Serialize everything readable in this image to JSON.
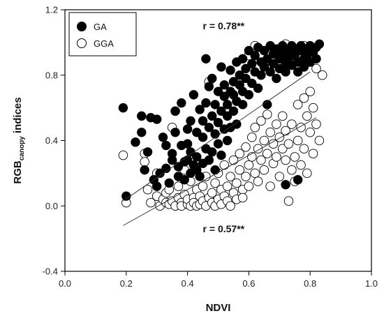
{
  "chart_data": {
    "type": "scatter",
    "xlabel": "NDVI",
    "ylabel": {
      "main": "RGB",
      "sub": "canopy",
      "tail": " indices"
    },
    "xlim": [
      0.0,
      1.0
    ],
    "ylim": [
      -0.4,
      1.2
    ],
    "xticks": [
      0.0,
      0.2,
      0.4,
      0.6,
      0.8,
      1.0
    ],
    "yticks": [
      -0.4,
      0.0,
      0.4,
      0.8,
      1.2
    ],
    "xtick_labels": [
      "0.0",
      "0.2",
      "0.4",
      "0.6",
      "0.8",
      "1.0"
    ],
    "ytick_labels": [
      "-0.4",
      "0.0",
      "0.4",
      "0.8",
      "1.2"
    ],
    "grid": false,
    "legend_position": "top-left",
    "annotations": [
      {
        "text": "r = 0.78**",
        "x": 0.45,
        "y": 1.08
      },
      {
        "text": "r = 0.57**",
        "x": 0.45,
        "y": -0.16
      }
    ],
    "series": [
      {
        "name": "GA",
        "marker": "filled-circle",
        "color": "#000000",
        "fit_line": {
          "x": [
            0.19,
            0.8
          ],
          "y": [
            0.03,
            0.82
          ]
        },
        "points": [
          [
            0.19,
            0.6
          ],
          [
            0.2,
            0.06
          ],
          [
            0.23,
            0.39
          ],
          [
            0.25,
            0.55
          ],
          [
            0.25,
            0.45
          ],
          [
            0.26,
            0.22
          ],
          [
            0.27,
            0.33
          ],
          [
            0.28,
            0.54
          ],
          [
            0.29,
            0.16
          ],
          [
            0.3,
            0.12
          ],
          [
            0.3,
            0.53
          ],
          [
            0.31,
            0.2
          ],
          [
            0.32,
            0.42
          ],
          [
            0.33,
            0.37
          ],
          [
            0.33,
            0.23
          ],
          [
            0.34,
            0.14
          ],
          [
            0.35,
            0.32
          ],
          [
            0.35,
            0.28
          ],
          [
            0.36,
            0.45
          ],
          [
            0.36,
            0.58
          ],
          [
            0.37,
            0.18
          ],
          [
            0.37,
            0.24
          ],
          [
            0.38,
            0.37
          ],
          [
            0.38,
            0.63
          ],
          [
            0.39,
            0.16
          ],
          [
            0.39,
            0.27
          ],
          [
            0.4,
            0.38
          ],
          [
            0.4,
            0.47
          ],
          [
            0.4,
            0.28
          ],
          [
            0.41,
            0.2
          ],
          [
            0.41,
            0.33
          ],
          [
            0.41,
            0.52
          ],
          [
            0.42,
            0.25
          ],
          [
            0.42,
            0.68
          ],
          [
            0.43,
            0.45
          ],
          [
            0.43,
            0.3
          ],
          [
            0.43,
            0.22
          ],
          [
            0.44,
            0.59
          ],
          [
            0.44,
            0.18
          ],
          [
            0.45,
            0.42
          ],
          [
            0.45,
            0.26
          ],
          [
            0.45,
            0.52
          ],
          [
            0.46,
            0.35
          ],
          [
            0.46,
            0.9
          ],
          [
            0.46,
            0.63
          ],
          [
            0.47,
            0.28
          ],
          [
            0.47,
            0.48
          ],
          [
            0.47,
            0.73
          ],
          [
            0.48,
            0.78
          ],
          [
            0.48,
            0.55
          ],
          [
            0.48,
            0.33
          ],
          [
            0.49,
            0.44
          ],
          [
            0.49,
            0.62
          ],
          [
            0.49,
            0.22
          ],
          [
            0.5,
            0.7
          ],
          [
            0.5,
            0.51
          ],
          [
            0.5,
            0.38
          ],
          [
            0.51,
            0.85
          ],
          [
            0.51,
            0.58
          ],
          [
            0.51,
            0.31
          ],
          [
            0.52,
            0.67
          ],
          [
            0.52,
            0.47
          ],
          [
            0.52,
            0.74
          ],
          [
            0.53,
            0.55
          ],
          [
            0.53,
            0.4
          ],
          [
            0.53,
            0.62
          ],
          [
            0.54,
            0.83
          ],
          [
            0.54,
            0.7
          ],
          [
            0.54,
            0.48
          ],
          [
            0.55,
            0.76
          ],
          [
            0.55,
            0.58
          ],
          [
            0.55,
            0.68
          ],
          [
            0.56,
            0.88
          ],
          [
            0.56,
            0.64
          ],
          [
            0.56,
            0.5
          ],
          [
            0.57,
            0.74
          ],
          [
            0.57,
            0.8
          ],
          [
            0.58,
            0.62
          ],
          [
            0.58,
            0.9
          ],
          [
            0.58,
            0.7
          ],
          [
            0.59,
            0.78
          ],
          [
            0.59,
            0.84
          ],
          [
            0.6,
            0.68
          ],
          [
            0.6,
            0.95
          ],
          [
            0.61,
            0.87
          ],
          [
            0.61,
            0.75
          ],
          [
            0.62,
            0.92
          ],
          [
            0.62,
            0.82
          ],
          [
            0.63,
            0.97
          ],
          [
            0.63,
            0.72
          ],
          [
            0.64,
            0.88
          ],
          [
            0.64,
            0.8
          ],
          [
            0.65,
            0.95
          ],
          [
            0.65,
            0.85
          ],
          [
            0.66,
            0.62
          ],
          [
            0.66,
            0.9
          ],
          [
            0.67,
            0.98
          ],
          [
            0.67,
            0.82
          ],
          [
            0.68,
            0.93
          ],
          [
            0.68,
            0.87
          ],
          [
            0.69,
            0.78
          ],
          [
            0.69,
            0.96
          ],
          [
            0.7,
            0.9
          ],
          [
            0.7,
            0.84
          ],
          [
            0.71,
            0.98
          ],
          [
            0.71,
            0.93
          ],
          [
            0.72,
            0.87
          ],
          [
            0.72,
            0.82
          ],
          [
            0.73,
            0.95
          ],
          [
            0.73,
            0.9
          ],
          [
            0.74,
            0.98
          ],
          [
            0.74,
            0.86
          ],
          [
            0.75,
            0.92
          ],
          [
            0.75,
            0.96
          ],
          [
            0.76,
            0.88
          ],
          [
            0.76,
            0.82
          ],
          [
            0.77,
            0.95
          ],
          [
            0.77,
            0.98
          ],
          [
            0.78,
            0.9
          ],
          [
            0.78,
            0.85
          ],
          [
            0.79,
            0.96
          ],
          [
            0.79,
            0.92
          ],
          [
            0.8,
            0.98
          ],
          [
            0.8,
            0.88
          ],
          [
            0.81,
            0.94
          ],
          [
            0.82,
            0.97
          ],
          [
            0.82,
            0.9
          ],
          [
            0.83,
            0.99
          ],
          [
            0.72,
            0.13
          ],
          [
            0.76,
            0.16
          ]
        ]
      },
      {
        "name": "GGA",
        "marker": "open-circle",
        "color": "#000000",
        "fit_line": {
          "x": [
            0.19,
            0.82
          ],
          "y": [
            -0.12,
            0.54
          ]
        },
        "points": [
          [
            0.19,
            0.31
          ],
          [
            0.2,
            0.02
          ],
          [
            0.26,
            0.32
          ],
          [
            0.26,
            0.27
          ],
          [
            0.27,
            0.1
          ],
          [
            0.28,
            0.02
          ],
          [
            0.3,
            0.06
          ],
          [
            0.3,
            0.2
          ],
          [
            0.31,
            0.0
          ],
          [
            0.32,
            0.04
          ],
          [
            0.33,
            0.08
          ],
          [
            0.33,
            0.02
          ],
          [
            0.34,
            0.01
          ],
          [
            0.34,
            0.1
          ],
          [
            0.35,
            0.03
          ],
          [
            0.35,
            0.48
          ],
          [
            0.36,
            0.0
          ],
          [
            0.36,
            0.58
          ],
          [
            0.37,
            0.05
          ],
          [
            0.37,
            0.12
          ],
          [
            0.38,
            0.02
          ],
          [
            0.38,
            0.0
          ],
          [
            0.39,
            0.07
          ],
          [
            0.39,
            0.22
          ],
          [
            0.4,
            0.01
          ],
          [
            0.4,
            0.04
          ],
          [
            0.41,
            0.0
          ],
          [
            0.41,
            0.15
          ],
          [
            0.42,
            0.05
          ],
          [
            0.42,
            0.02
          ],
          [
            0.43,
            0.1
          ],
          [
            0.43,
            0.0
          ],
          [
            0.44,
            0.06
          ],
          [
            0.44,
            0.01
          ],
          [
            0.45,
            0.03
          ],
          [
            0.45,
            0.12
          ],
          [
            0.46,
            0.0
          ],
          [
            0.46,
            0.18
          ],
          [
            0.47,
            0.05
          ],
          [
            0.47,
            0.76
          ],
          [
            0.48,
            0.02
          ],
          [
            0.48,
            0.08
          ],
          [
            0.49,
            0.0
          ],
          [
            0.49,
            0.14
          ],
          [
            0.5,
            0.04
          ],
          [
            0.5,
            0.2
          ],
          [
            0.51,
            0.01
          ],
          [
            0.51,
            0.1
          ],
          [
            0.52,
            0.06
          ],
          [
            0.52,
            0.25
          ],
          [
            0.53,
            0.03
          ],
          [
            0.53,
            0.12
          ],
          [
            0.54,
            0.18
          ],
          [
            0.54,
            0.0
          ],
          [
            0.55,
            0.08
          ],
          [
            0.55,
            0.28
          ],
          [
            0.56,
            0.14
          ],
          [
            0.56,
            0.04
          ],
          [
            0.57,
            0.22
          ],
          [
            0.57,
            0.32
          ],
          [
            0.58,
            0.1
          ],
          [
            0.58,
            0.05
          ],
          [
            0.59,
            0.18
          ],
          [
            0.59,
            0.36
          ],
          [
            0.6,
            0.25
          ],
          [
            0.6,
            0.12
          ],
          [
            0.61,
            0.3
          ],
          [
            0.61,
            0.42
          ],
          [
            0.62,
            0.2
          ],
          [
            0.62,
            0.48
          ],
          [
            0.63,
            0.35
          ],
          [
            0.63,
            0.15
          ],
          [
            0.64,
            0.28
          ],
          [
            0.64,
            0.52
          ],
          [
            0.65,
            0.4
          ],
          [
            0.65,
            0.22
          ],
          [
            0.66,
            0.32
          ],
          [
            0.66,
            0.56
          ],
          [
            0.67,
            0.45
          ],
          [
            0.67,
            0.12
          ],
          [
            0.68,
            0.38
          ],
          [
            0.68,
            0.26
          ],
          [
            0.69,
            0.5
          ],
          [
            0.69,
            0.3
          ],
          [
            0.7,
            0.42
          ],
          [
            0.7,
            0.18
          ],
          [
            0.71,
            0.35
          ],
          [
            0.71,
            0.55
          ],
          [
            0.72,
            0.28
          ],
          [
            0.72,
            0.46
          ],
          [
            0.73,
            0.03
          ],
          [
            0.73,
            0.38
          ],
          [
            0.74,
            0.22
          ],
          [
            0.74,
            0.5
          ],
          [
            0.75,
            0.3
          ],
          [
            0.75,
            0.15
          ],
          [
            0.76,
            0.4
          ],
          [
            0.76,
            0.62
          ],
          [
            0.77,
            0.25
          ],
          [
            0.77,
            0.48
          ],
          [
            0.78,
            0.35
          ],
          [
            0.78,
            0.66
          ],
          [
            0.79,
            0.2
          ],
          [
            0.79,
            0.55
          ],
          [
            0.8,
            0.45
          ],
          [
            0.8,
            0.7
          ],
          [
            0.81,
            0.32
          ],
          [
            0.81,
            0.6
          ],
          [
            0.82,
            0.5
          ],
          [
            0.82,
            0.84
          ],
          [
            0.83,
            0.4
          ],
          [
            0.84,
            0.8
          ],
          [
            0.6,
            0.92
          ],
          [
            0.65,
            0.86
          ],
          [
            0.7,
            0.9
          ],
          [
            0.75,
            0.95
          ],
          [
            0.78,
            0.98
          ],
          [
            0.8,
            0.97
          ],
          [
            0.62,
            0.98
          ],
          [
            0.68,
            0.96
          ],
          [
            0.72,
            0.99
          ]
        ]
      }
    ]
  }
}
